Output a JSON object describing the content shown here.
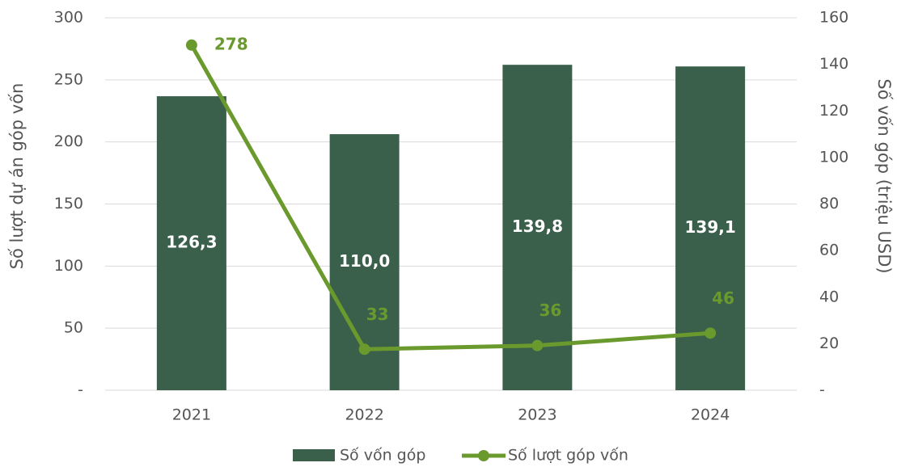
{
  "chart_data": {
    "type": "bar",
    "categories": [
      "2021",
      "2022",
      "2023",
      "2024"
    ],
    "series": [
      {
        "name": "Số vốn góp",
        "type": "bar",
        "axis": "y2",
        "color": "#3a5f4b",
        "values": [
          126.3,
          110.0,
          139.8,
          139.1
        ],
        "value_labels": [
          "126,3",
          "110,0",
          "139,8",
          "139,1"
        ]
      },
      {
        "name": "Số lượt góp vốn",
        "type": "line",
        "axis": "y",
        "color": "#6a9a2e",
        "values": [
          278,
          33,
          36,
          46
        ]
      }
    ],
    "ylabel": "Số lượt dự án góp vốn",
    "y2label": "Số vốn góp (triệu USD)",
    "ylim": [
      0,
      300
    ],
    "yticks": [
      {
        "value": 0,
        "label": "-"
      },
      50,
      100,
      150,
      200,
      250,
      300
    ],
    "y2lim": [
      0,
      160
    ],
    "y2ticks": [
      {
        "value": 0,
        "label": "-"
      },
      20,
      40,
      60,
      80,
      100,
      120,
      140,
      160
    ],
    "grid": true,
    "legend": "bottom"
  }
}
